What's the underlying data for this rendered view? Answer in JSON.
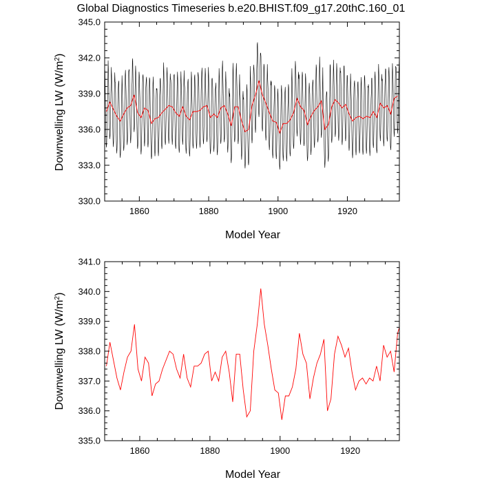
{
  "title": "Global Diagnostics Timeseries b.e20.BHIST.f09_g17.20thC.160_01",
  "colors": {
    "monthly": "#000000",
    "annual": "#ff0000",
    "axis": "#000000",
    "background": "#ffffff"
  },
  "chart_data": [
    {
      "type": "line",
      "title": "",
      "xlabel": "Model Year",
      "ylabel_main": "Downwelling LW (W/m",
      "ylabel_sup": "2",
      "ylabel_tail": ")",
      "xlim": [
        1850,
        1935
      ],
      "ylim": [
        330.0,
        345.0
      ],
      "xticks": [
        "1860",
        "1880",
        "1900",
        "1920"
      ],
      "yticks": [
        "330.0",
        "333.0",
        "336.0",
        "339.0",
        "342.0",
        "345.0"
      ],
      "grid": false,
      "legend": "none",
      "series": [
        {
          "key": "monthly",
          "color": "#000000",
          "description_level": "seasonal oscillation around annual mean",
          "amplitude": 6.2,
          "start_year": 1850,
          "end_year": 1935,
          "samples_per_year": 12
        },
        {
          "key": "annual",
          "color": "#ff0000",
          "values": [
            337.5,
            338.3,
            337.7,
            337.1,
            336.7,
            337.3,
            337.8,
            338.0,
            338.9,
            337.4,
            337.0,
            337.8,
            337.6,
            336.5,
            336.9,
            337.0,
            337.4,
            337.7,
            338.0,
            337.9,
            337.4,
            337.1,
            337.9,
            337.1,
            336.8,
            337.5,
            337.5,
            337.6,
            337.9,
            338.0,
            337.0,
            337.3,
            337.0,
            337.8,
            338.0,
            337.3,
            336.3,
            337.9,
            337.9,
            336.7,
            335.8,
            336.0,
            338.0,
            338.9,
            340.1,
            338.9,
            338.2,
            337.4,
            336.7,
            336.6,
            335.7,
            336.5,
            336.5,
            336.8,
            337.4,
            338.6,
            337.9,
            337.6,
            336.4,
            337.1,
            337.6,
            337.9,
            338.4,
            336.0,
            336.4,
            337.9,
            338.5,
            338.2,
            337.8,
            338.1,
            337.3,
            336.7,
            337.0,
            337.1,
            336.9,
            337.1,
            337.0,
            337.5,
            337.0,
            338.2,
            337.8,
            338.0,
            337.3,
            338.6,
            338.8
          ]
        }
      ]
    },
    {
      "type": "line",
      "title": "",
      "xlabel": "Model Year",
      "ylabel_main": "Downwelling LW (W/m",
      "ylabel_sup": "2",
      "ylabel_tail": ")",
      "xlim": [
        1850,
        1934
      ],
      "ylim": [
        335.0,
        341.0
      ],
      "xticks": [
        "1860",
        "1880",
        "1900",
        "1920"
      ],
      "yticks": [
        "335.0",
        "336.0",
        "337.0",
        "338.0",
        "339.0",
        "340.0",
        "341.0"
      ],
      "grid": false,
      "legend": "none",
      "series": [
        {
          "key": "annual",
          "color": "#ff0000",
          "values": [
            337.5,
            338.3,
            337.7,
            337.1,
            336.7,
            337.3,
            337.8,
            338.0,
            338.9,
            337.4,
            337.0,
            337.8,
            337.6,
            336.5,
            336.9,
            337.0,
            337.4,
            337.7,
            338.0,
            337.9,
            337.4,
            337.1,
            337.9,
            337.1,
            336.8,
            337.5,
            337.5,
            337.6,
            337.9,
            338.0,
            337.0,
            337.3,
            337.0,
            337.8,
            338.0,
            337.3,
            336.3,
            337.9,
            337.9,
            336.7,
            335.8,
            336.0,
            338.0,
            338.9,
            340.1,
            338.9,
            338.2,
            337.4,
            336.7,
            336.6,
            335.7,
            336.5,
            336.5,
            336.8,
            337.4,
            338.6,
            337.9,
            337.6,
            336.4,
            337.1,
            337.6,
            337.9,
            338.4,
            336.0,
            336.4,
            337.9,
            338.5,
            338.2,
            337.8,
            338.1,
            337.3,
            336.7,
            337.0,
            337.1,
            336.9,
            337.1,
            337.0,
            337.5,
            337.0,
            338.2,
            337.8,
            338.0,
            337.3,
            338.6,
            338.8
          ]
        }
      ]
    }
  ]
}
